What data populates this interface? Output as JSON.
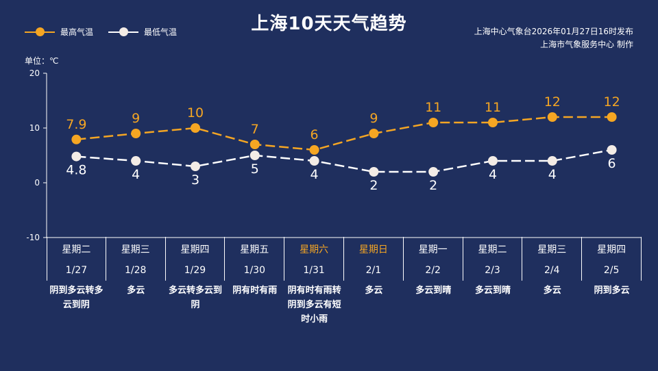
{
  "title": "上海10天天气趋势",
  "legend": {
    "high": "最高气温",
    "low": "最低气温"
  },
  "source": {
    "line1": "上海中心气象台2026年01月27日16时发布",
    "line2": "上海市气象服务中心 制作"
  },
  "unit_label": "单位：℃",
  "colors": {
    "background": "#1f2f5e",
    "high": "#f5a623",
    "low": "#ffffff",
    "weekend": "#f5a623"
  },
  "chart_data": {
    "type": "line",
    "title": "上海10天天气趋势",
    "ylabel": "单位：℃",
    "ylim": [
      -10,
      20
    ],
    "yticks": [
      20,
      10,
      0,
      -10
    ],
    "grid": false,
    "legend_position": "top-left",
    "categories": [
      "1/27",
      "1/28",
      "1/29",
      "1/30",
      "1/31",
      "2/1",
      "2/2",
      "2/3",
      "2/4",
      "2/5"
    ],
    "series": [
      {
        "name": "最高气温",
        "values": [
          7.9,
          9,
          10,
          7,
          6,
          9,
          11,
          11,
          12,
          12
        ],
        "labels": [
          "7.9",
          "9",
          "10",
          "7",
          "6",
          "9",
          "11",
          "11",
          "12",
          "12"
        ]
      },
      {
        "name": "最低气温",
        "values": [
          4.8,
          4,
          3,
          5,
          4,
          2,
          2,
          4,
          4,
          6
        ],
        "labels": [
          "4.8",
          "4",
          "3",
          "5",
          "4",
          "2",
          "2",
          "4",
          "4",
          "6"
        ]
      }
    ]
  },
  "days": [
    {
      "weekday": "星期二",
      "date": "1/27",
      "weather": "阴到多云转多云到阴",
      "weekend": false
    },
    {
      "weekday": "星期三",
      "date": "1/28",
      "weather": "多云",
      "weekend": false
    },
    {
      "weekday": "星期四",
      "date": "1/29",
      "weather": "多云转多云到阴",
      "weekend": false
    },
    {
      "weekday": "星期五",
      "date": "1/30",
      "weather": "阴有时有雨",
      "weekend": false
    },
    {
      "weekday": "星期六",
      "date": "1/31",
      "weather": "阴有时有雨转阴到多云有短时小雨",
      "weekend": true
    },
    {
      "weekday": "星期日",
      "date": "2/1",
      "weather": "多云",
      "weekend": true
    },
    {
      "weekday": "星期一",
      "date": "2/2",
      "weather": "多云到晴",
      "weekend": false
    },
    {
      "weekday": "星期二",
      "date": "2/3",
      "weather": "多云到晴",
      "weekend": false
    },
    {
      "weekday": "星期三",
      "date": "2/4",
      "weather": "多云",
      "weekend": false
    },
    {
      "weekday": "星期四",
      "date": "2/5",
      "weather": "阴到多云",
      "weekend": false
    }
  ]
}
